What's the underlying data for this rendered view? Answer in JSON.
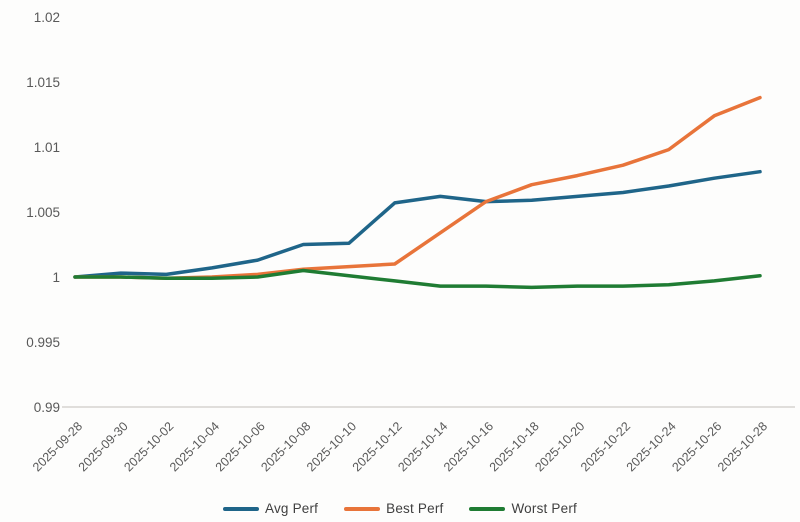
{
  "chart_data": {
    "type": "line",
    "title": "",
    "xlabel": "",
    "ylabel": "",
    "grid": false,
    "legend_position": "bottom",
    "ylim": [
      0.99,
      1.02
    ],
    "yticks": [
      0.99,
      0.995,
      1,
      1.005,
      1.01,
      1.015,
      1.02
    ],
    "ytick_labels": [
      "0.99",
      "0.995",
      "1",
      "1.005",
      "1.01",
      "1.015",
      "1.02"
    ],
    "x": [
      "2025-09-28",
      "2025-09-30",
      "2025-10-02",
      "2025-10-04",
      "2025-10-06",
      "2025-10-08",
      "2025-10-10",
      "2025-10-12",
      "2025-10-14",
      "2025-10-16",
      "2025-10-18",
      "2025-10-20",
      "2025-10-22",
      "2025-10-24",
      "2025-10-26",
      "2025-10-28"
    ],
    "series": [
      {
        "name": "Avg Perf",
        "color": "#1f6589",
        "values": [
          1.0,
          1.0003,
          1.0002,
          1.0007,
          1.0013,
          1.0025,
          1.0026,
          1.0057,
          1.0062,
          1.0058,
          1.0059,
          1.0062,
          1.0065,
          1.007,
          1.0076,
          1.0081
        ]
      },
      {
        "name": "Best Perf",
        "color": "#e8743a",
        "values": [
          1.0,
          1.0,
          0.9999,
          1.0,
          1.0002,
          1.0006,
          1.0008,
          1.001,
          1.0034,
          1.0058,
          1.0071,
          1.0078,
          1.0086,
          1.0098,
          1.0124,
          1.0138
        ]
      },
      {
        "name": "Worst Perf",
        "color": "#1f7c33",
        "values": [
          1.0,
          1.0,
          0.9999,
          0.9999,
          1.0,
          1.0005,
          1.0001,
          0.9997,
          0.9993,
          0.9993,
          0.9992,
          0.9993,
          0.9993,
          0.9994,
          0.9997,
          1.0001
        ]
      }
    ],
    "axis_line_color": "#d6d4d0",
    "tick_label_color": "#595959"
  }
}
